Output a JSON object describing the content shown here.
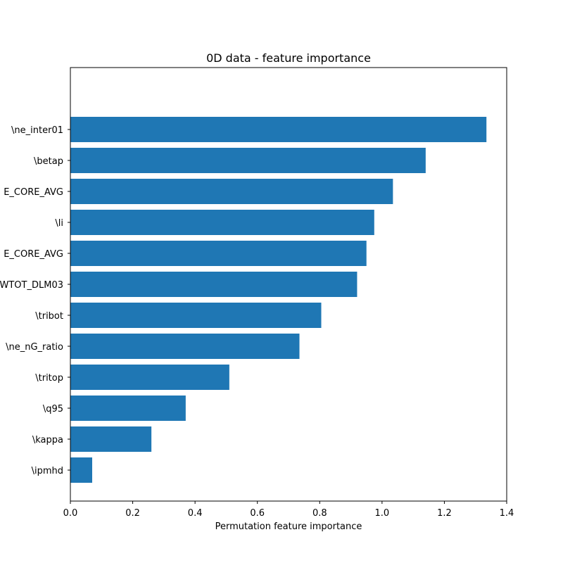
{
  "chart_data": {
    "type": "bar",
    "orientation": "horizontal",
    "title": "0D data - feature importance",
    "xlabel": "Permutation feature importance",
    "ylabel": "",
    "xlim": [
      0,
      1.4
    ],
    "xticks": [
      "0.0",
      "0.2",
      "0.4",
      "0.6",
      "0.8",
      "1.0",
      "1.2",
      "1.4"
    ],
    "grid": false,
    "bar_color": "#1f77b4",
    "categories": [
      "\\ipmhd",
      "\\kappa",
      "\\q95",
      "\\tritop",
      "\\ne_nG_ratio",
      "\\tribot",
      "WTOT_DLM03",
      "E_CORE_AVG",
      "\\li",
      "E_CORE_AVG",
      "\\betap",
      "\\ne_inter01"
    ],
    "values": [
      0.07,
      0.26,
      0.37,
      0.51,
      0.735,
      0.805,
      0.92,
      0.95,
      0.975,
      1.035,
      1.14,
      1.335
    ]
  }
}
